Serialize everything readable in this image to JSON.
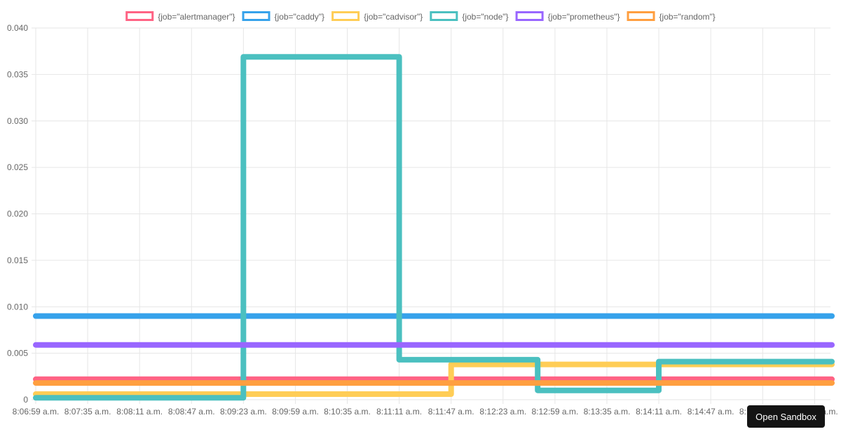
{
  "chart_data": {
    "type": "line",
    "step": true,
    "title": "",
    "xlabel": "",
    "ylabel": "",
    "ylim": [
      0,
      0.04
    ],
    "yticks": [
      "0",
      "0.005",
      "0.010",
      "0.015",
      "0.020",
      "0.025",
      "0.030",
      "0.035",
      "0.040"
    ],
    "categories": [
      "8:06:59 a.m.",
      "8:07:35 a.m.",
      "8:08:11 a.m.",
      "8:08:47 a.m.",
      "8:09:23 a.m.",
      "8:09:59 a.m.",
      "8:10:35 a.m.",
      "8:11:11 a.m.",
      "8:11:47 a.m.",
      "8:12:23 a.m.",
      "8:12:59 a.m.",
      "8:13:35 a.m.",
      "8:14:11 a.m.",
      "8:14:47 a.m.",
      "8:15:23 a.m.",
      "8:15:59 a.m."
    ],
    "x_range": [
      "8:06:59 a.m.",
      "8:16:11 a.m."
    ],
    "grid": true,
    "legend_position": "top",
    "series": [
      {
        "name": "{job=\"alertmanager\"}",
        "color": "#ff6384",
        "points": [
          [
            "8:06:59 a.m.",
            0.0022
          ],
          [
            "8:16:11 a.m.",
            0.0022
          ]
        ]
      },
      {
        "name": "{job=\"caddy\"}",
        "color": "#36a2eb",
        "points": [
          [
            "8:06:59 a.m.",
            0.009
          ],
          [
            "8:16:11 a.m.",
            0.009
          ]
        ]
      },
      {
        "name": "{job=\"cadvisor\"}",
        "color": "#ffcd56",
        "points": [
          [
            "8:06:59 a.m.",
            0.0006
          ],
          [
            "8:11:47 a.m.",
            0.0006
          ],
          [
            "8:11:47 a.m.",
            0.0038
          ],
          [
            "8:16:11 a.m.",
            0.0038
          ]
        ]
      },
      {
        "name": "{job=\"node\"}",
        "color": "#4bc0c0",
        "points": [
          [
            "8:06:59 a.m.",
            0.0002
          ],
          [
            "8:09:23 a.m.",
            0.0002
          ],
          [
            "8:09:23 a.m.",
            0.0369
          ],
          [
            "8:11:11 a.m.",
            0.0369
          ],
          [
            "8:11:11 a.m.",
            0.0043
          ],
          [
            "8:12:47 a.m.",
            0.0043
          ],
          [
            "8:12:47 a.m.",
            0.001
          ],
          [
            "8:14:11 a.m.",
            0.001
          ],
          [
            "8:14:11 a.m.",
            0.0041
          ],
          [
            "8:16:11 a.m.",
            0.0041
          ]
        ]
      },
      {
        "name": "{job=\"prometheus\"}",
        "color": "#9966ff",
        "points": [
          [
            "8:06:59 a.m.",
            0.0059
          ],
          [
            "8:16:11 a.m.",
            0.0059
          ]
        ]
      },
      {
        "name": "{job=\"random\"}",
        "color": "#ff9f40",
        "points": [
          [
            "8:06:59 a.m.",
            0.0018
          ],
          [
            "8:16:11 a.m.",
            0.0018
          ]
        ]
      }
    ]
  },
  "ui": {
    "open_sandbox_label": "Open Sandbox"
  }
}
